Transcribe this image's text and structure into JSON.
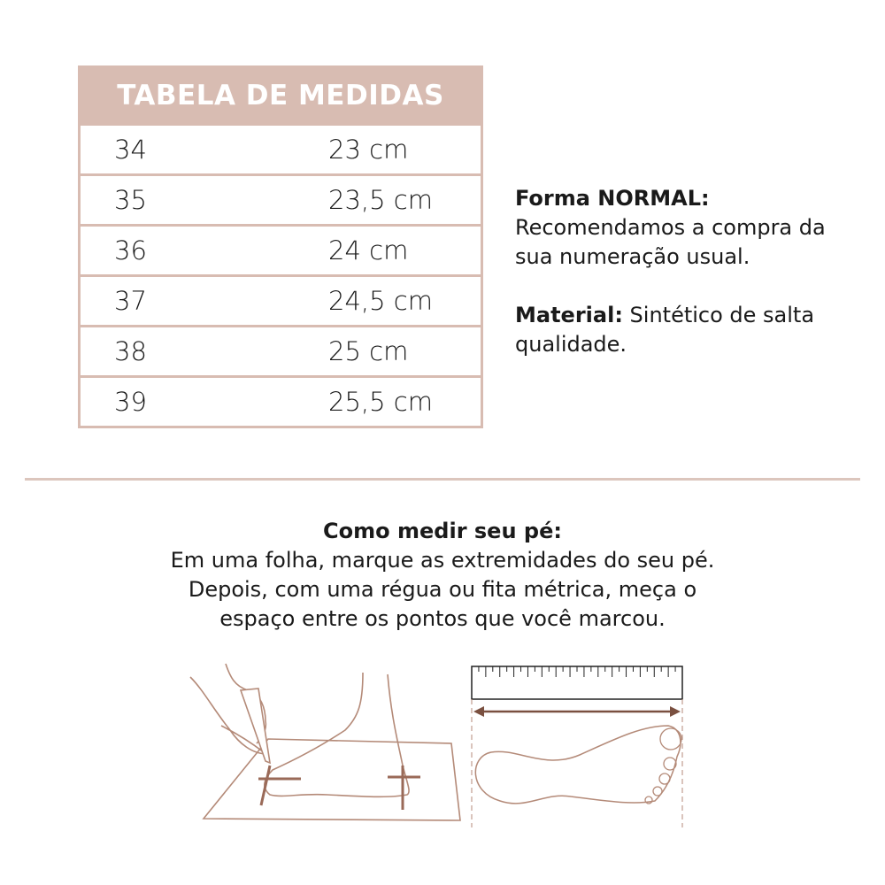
{
  "table": {
    "title": "TABELA DE MEDIDAS",
    "rows": [
      {
        "size": "34",
        "length": "23 cm"
      },
      {
        "size": "35",
        "length": "23,5 cm"
      },
      {
        "size": "36",
        "length": "24 cm"
      },
      {
        "size": "37",
        "length": "24,5 cm"
      },
      {
        "size": "38",
        "length": "25 cm"
      },
      {
        "size": "39",
        "length": "25,5 cm"
      }
    ]
  },
  "info": {
    "forma_label": "Forma NORMAL:",
    "forma_text": "Recomendamos a compra da sua numeração usual.",
    "material_label": "Material:",
    "material_text": " Sintético de salta qualidade."
  },
  "howto": {
    "heading": "Como medir seu pé:",
    "line1": "Em uma folha, marque as extremidades do seu pé.",
    "line2": "Depois, com uma régua ou fita métrica, meça o",
    "line3": "espaço entre os pontos que você marcou."
  },
  "colors": {
    "accent": "#d8bcb2",
    "illustration": "#b48a78",
    "arrow": "#7a5040"
  },
  "icons": [
    "hand-marking-foot-illustration",
    "ruler-footprint-illustration"
  ]
}
